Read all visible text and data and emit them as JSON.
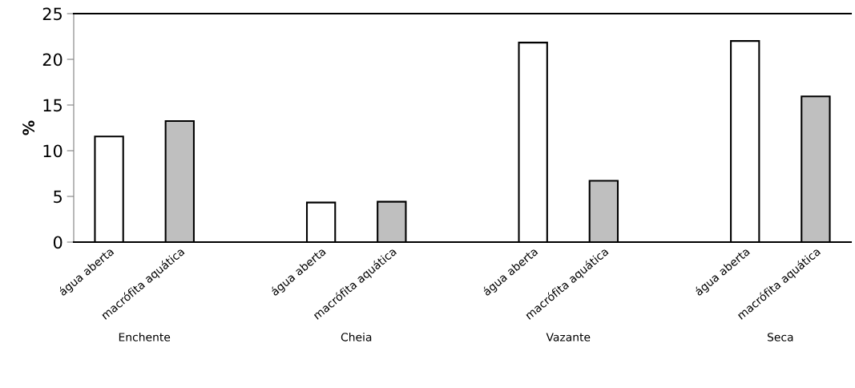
{
  "chart_data": {
    "type": "bar",
    "ylabel": "%",
    "categories": [
      "água aberta",
      "macrófita aquática",
      "água aberta",
      "macrófita aquática",
      "água aberta",
      "macrófita aquática",
      "água aberta",
      "macrófita aquática"
    ],
    "values": [
      11.55,
      13.24,
      4.33,
      4.42,
      21.83,
      6.71,
      22.01,
      15.95
    ],
    "colors": [
      "#ffffff",
      "#bfbfbf",
      "#ffffff",
      "#bfbfbf",
      "#ffffff",
      "#bfbfbf",
      "#ffffff",
      "#bfbfbf"
    ],
    "annotations": [
      "Enchente",
      "Cheia",
      "Vazante",
      "Seca"
    ],
    "ylim": [
      0,
      25
    ],
    "yticks": [
      0,
      5,
      10,
      15,
      20,
      25
    ],
    "grid": false,
    "legend": false
  }
}
